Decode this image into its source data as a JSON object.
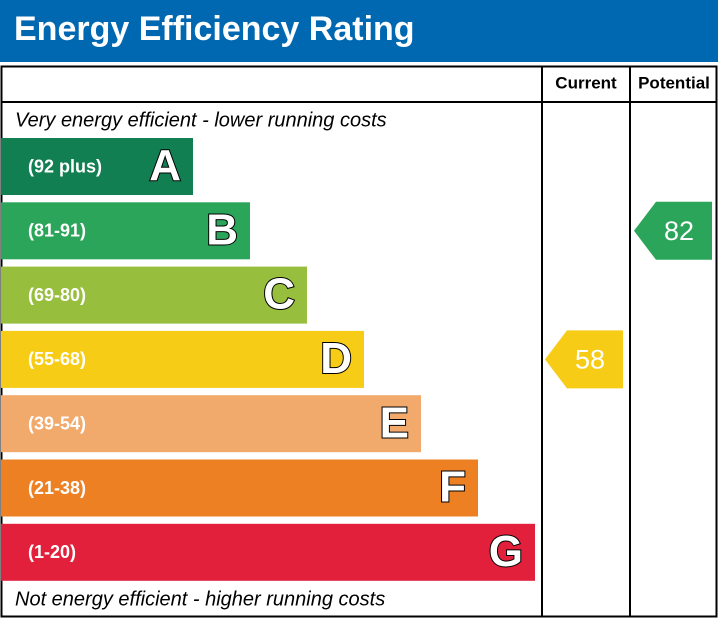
{
  "header": {
    "title": "Energy Efficiency Rating"
  },
  "columns": {
    "current": "Current",
    "potential": "Potential"
  },
  "notes": {
    "top": "Very energy efficient - lower running costs",
    "bottom": "Not energy efficient - higher running costs"
  },
  "bands": [
    {
      "letter": "A",
      "range": "(92 plus)",
      "color": "#127f52"
    },
    {
      "letter": "B",
      "range": "(81-91)",
      "color": "#2aa55a"
    },
    {
      "letter": "C",
      "range": "(69-80)",
      "color": "#97be3d"
    },
    {
      "letter": "D",
      "range": "(55-68)",
      "color": "#f6cc17"
    },
    {
      "letter": "E",
      "range": "(39-54)",
      "color": "#f2a96c"
    },
    {
      "letter": "F",
      "range": "(21-38)",
      "color": "#ed8023"
    },
    {
      "letter": "G",
      "range": "(1-20)",
      "color": "#e3203c"
    }
  ],
  "ratings": {
    "current": 58,
    "potential": 82
  }
}
